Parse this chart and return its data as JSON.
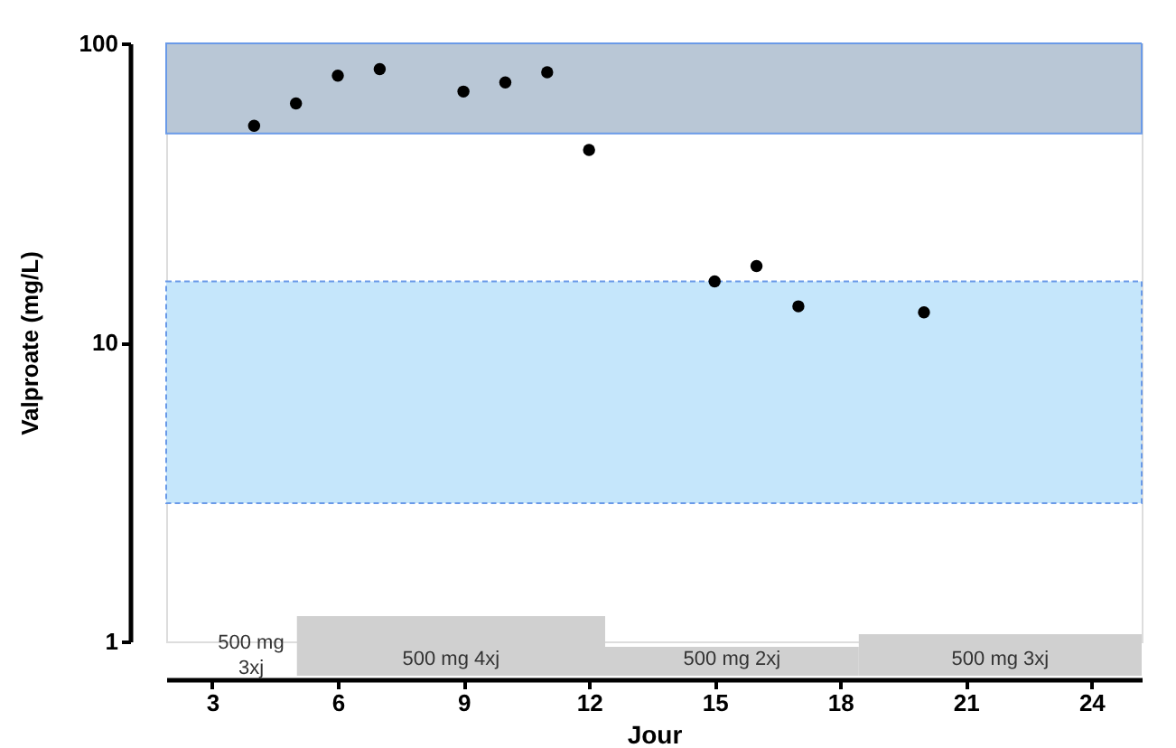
{
  "chart_data": {
    "type": "scatter",
    "xlabel": "Jour",
    "ylabel": "Valproate (mg/L)",
    "x": [
      4,
      5,
      6,
      7,
      9,
      10,
      11,
      12,
      15,
      16,
      17,
      20
    ],
    "series": [
      {
        "color": "#000000",
        "values": [
          53,
          63,
          78,
          82,
          69,
          74,
          80,
          44,
          16,
          18,
          13.2,
          12.6
        ]
      }
    ],
    "marker": "circle",
    "log": "y",
    "grid": false,
    "annotations": [
      "500 mg\n3xj",
      "500 mg 4xj",
      "500 mg 2xj",
      "500 mg 3xj"
    ],
    "xlim": [
      1.9,
      25.2
    ],
    "ylim": [
      1,
      100
    ],
    "xticks": [
      3,
      6,
      9,
      12,
      15,
      18,
      21,
      24
    ],
    "yticks": [
      1,
      10,
      100
    ],
    "bands": [
      {
        "axis": "y",
        "from": 50,
        "to": 100,
        "label": null,
        "color": "#b9c7d6"
      },
      {
        "axis": "y",
        "from": 2.9,
        "to": 16,
        "label": null,
        "color": "#c5e6fb"
      }
    ]
  }
}
